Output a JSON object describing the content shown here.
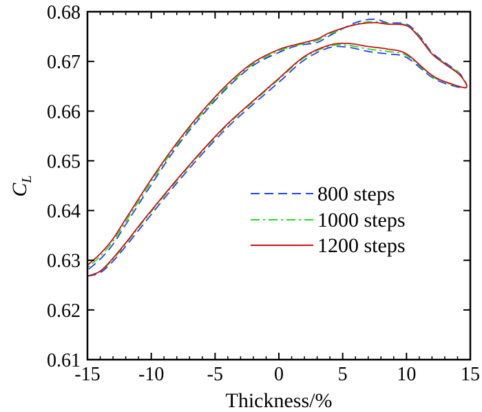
{
  "chart_data": {
    "type": "line",
    "title": "",
    "xlabel": "Thickness/%",
    "ylabel_main": "C",
    "ylabel_sub": "L",
    "xlim": [
      -15,
      15
    ],
    "ylim": [
      0.61,
      0.68
    ],
    "x_ticks": [
      -15,
      -10,
      -5,
      0,
      5,
      10,
      15
    ],
    "x_tick_labels": [
      "-15",
      "-10",
      "-5",
      "0",
      "5",
      "10",
      "15"
    ],
    "y_ticks": [
      0.61,
      0.62,
      0.63,
      0.64,
      0.65,
      0.66,
      0.67,
      0.68
    ],
    "y_tick_labels": [
      "0.61",
      "0.62",
      "0.63",
      "0.64",
      "0.65",
      "0.66",
      "0.67",
      "0.68"
    ],
    "grid": false,
    "legend_position": "center-right",
    "series": [
      {
        "name": "800 steps",
        "color": "#1f3fff",
        "dash": "dashed",
        "x": [
          -15,
          -14,
          -13,
          -12,
          -11,
          -10,
          -8,
          -6,
          -4,
          -2,
          0,
          2,
          4,
          5.5,
          7,
          8.5,
          10,
          12,
          13.5,
          14.7,
          14.2,
          13,
          12,
          11,
          10,
          8.5,
          7.5,
          6,
          4,
          3,
          1.5,
          0,
          -2,
          -4,
          -6,
          -8,
          -10,
          -12,
          -13,
          -14,
          -15
        ],
        "y": [
          0.6268,
          0.6275,
          0.6298,
          0.6328,
          0.636,
          0.6392,
          0.6455,
          0.6514,
          0.6568,
          0.6614,
          0.6658,
          0.6703,
          0.6728,
          0.6728,
          0.672,
          0.6715,
          0.6708,
          0.6668,
          0.6652,
          0.6648,
          0.6675,
          0.6698,
          0.6718,
          0.6752,
          0.6775,
          0.6778,
          0.6785,
          0.6778,
          0.6752,
          0.6738,
          0.6732,
          0.6718,
          0.6692,
          0.6648,
          0.6592,
          0.6528,
          0.6452,
          0.6372,
          0.6332,
          0.6302,
          0.628
        ]
      },
      {
        "name": "1000 steps",
        "color": "#22dd22",
        "dash": "dashdot",
        "x": [
          -15,
          -14,
          -13,
          -12,
          -11,
          -10,
          -8,
          -6,
          -4,
          -2,
          0,
          2,
          4,
          5.5,
          7,
          8.5,
          10,
          12,
          13.5,
          14.7,
          14.2,
          13,
          12,
          11,
          10,
          8.5,
          7.5,
          6,
          4,
          3,
          1.5,
          0,
          -2,
          -4,
          -6,
          -8,
          -10,
          -12,
          -13,
          -14,
          -15
        ],
        "y": [
          0.6268,
          0.6278,
          0.6302,
          0.6333,
          0.6366,
          0.6398,
          0.646,
          0.6519,
          0.6573,
          0.6619,
          0.6664,
          0.6708,
          0.6731,
          0.6732,
          0.6725,
          0.672,
          0.6712,
          0.667,
          0.6654,
          0.6648,
          0.6674,
          0.6696,
          0.6716,
          0.675,
          0.6773,
          0.6776,
          0.678,
          0.6775,
          0.6755,
          0.6742,
          0.6733,
          0.6721,
          0.6695,
          0.6651,
          0.6596,
          0.6532,
          0.6458,
          0.6378,
          0.6338,
          0.6308,
          0.6285
        ]
      },
      {
        "name": "1200 steps",
        "color": "#cc1111",
        "dash": "solid",
        "x": [
          -15,
          -14,
          -13,
          -12,
          -11,
          -10,
          -8,
          -6,
          -4,
          -2,
          0,
          2,
          4,
          5.5,
          7,
          8.5,
          10,
          12,
          13.5,
          14.7,
          14.2,
          13,
          12,
          11,
          10,
          8.5,
          7.5,
          6,
          4,
          3,
          1.5,
          0,
          -2,
          -4,
          -6,
          -8,
          -10,
          -12,
          -13,
          -14,
          -15
        ],
        "y": [
          0.6268,
          0.6278,
          0.6304,
          0.6335,
          0.6368,
          0.64,
          0.6462,
          0.6521,
          0.6575,
          0.6621,
          0.6666,
          0.671,
          0.6733,
          0.6736,
          0.673,
          0.6725,
          0.6715,
          0.6672,
          0.6655,
          0.6648,
          0.6672,
          0.6695,
          0.6715,
          0.6748,
          0.6772,
          0.6775,
          0.6778,
          0.6774,
          0.6758,
          0.6745,
          0.6735,
          0.6724,
          0.6698,
          0.6655,
          0.66,
          0.6536,
          0.6463,
          0.6383,
          0.6343,
          0.6313,
          0.629
        ]
      }
    ]
  }
}
